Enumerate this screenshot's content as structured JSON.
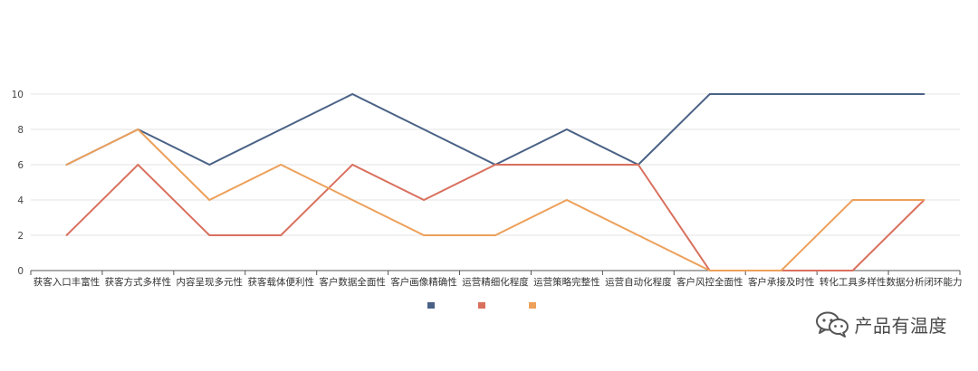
{
  "chart_data": {
    "type": "line",
    "title": "",
    "xlabel": "",
    "ylabel": "",
    "ylim": [
      0,
      10
    ],
    "yticks": [
      0,
      2,
      4,
      6,
      8,
      10
    ],
    "grid": "horizontal",
    "legend_position": "bottom-center",
    "categories": [
      "获客入口丰富性",
      "获客方式多样性",
      "内容呈现多元性",
      "获客载体便利性",
      "客户数据全面性",
      "客户画像精确性",
      "运营精细化程度",
      "运营策略完整性",
      "运营自动化程度",
      "客户风控全面性",
      "客户承接及时性",
      "转化工具多样性",
      "数据分析闭环能力"
    ],
    "series": [
      {
        "color": "#4a6286",
        "values": [
          6,
          8,
          6,
          8,
          10,
          8,
          6,
          8,
          6,
          10,
          10,
          10,
          10
        ]
      },
      {
        "color": "#d9705e",
        "values": [
          2,
          6,
          2,
          2,
          6,
          4,
          6,
          6,
          6,
          0,
          0,
          0,
          4
        ]
      },
      {
        "color": "#eda05a",
        "values": [
          6,
          8,
          4,
          6,
          4,
          2,
          2,
          4,
          2,
          0,
          0,
          4,
          4
        ]
      }
    ]
  },
  "watermark": {
    "text": "产品有温度"
  }
}
